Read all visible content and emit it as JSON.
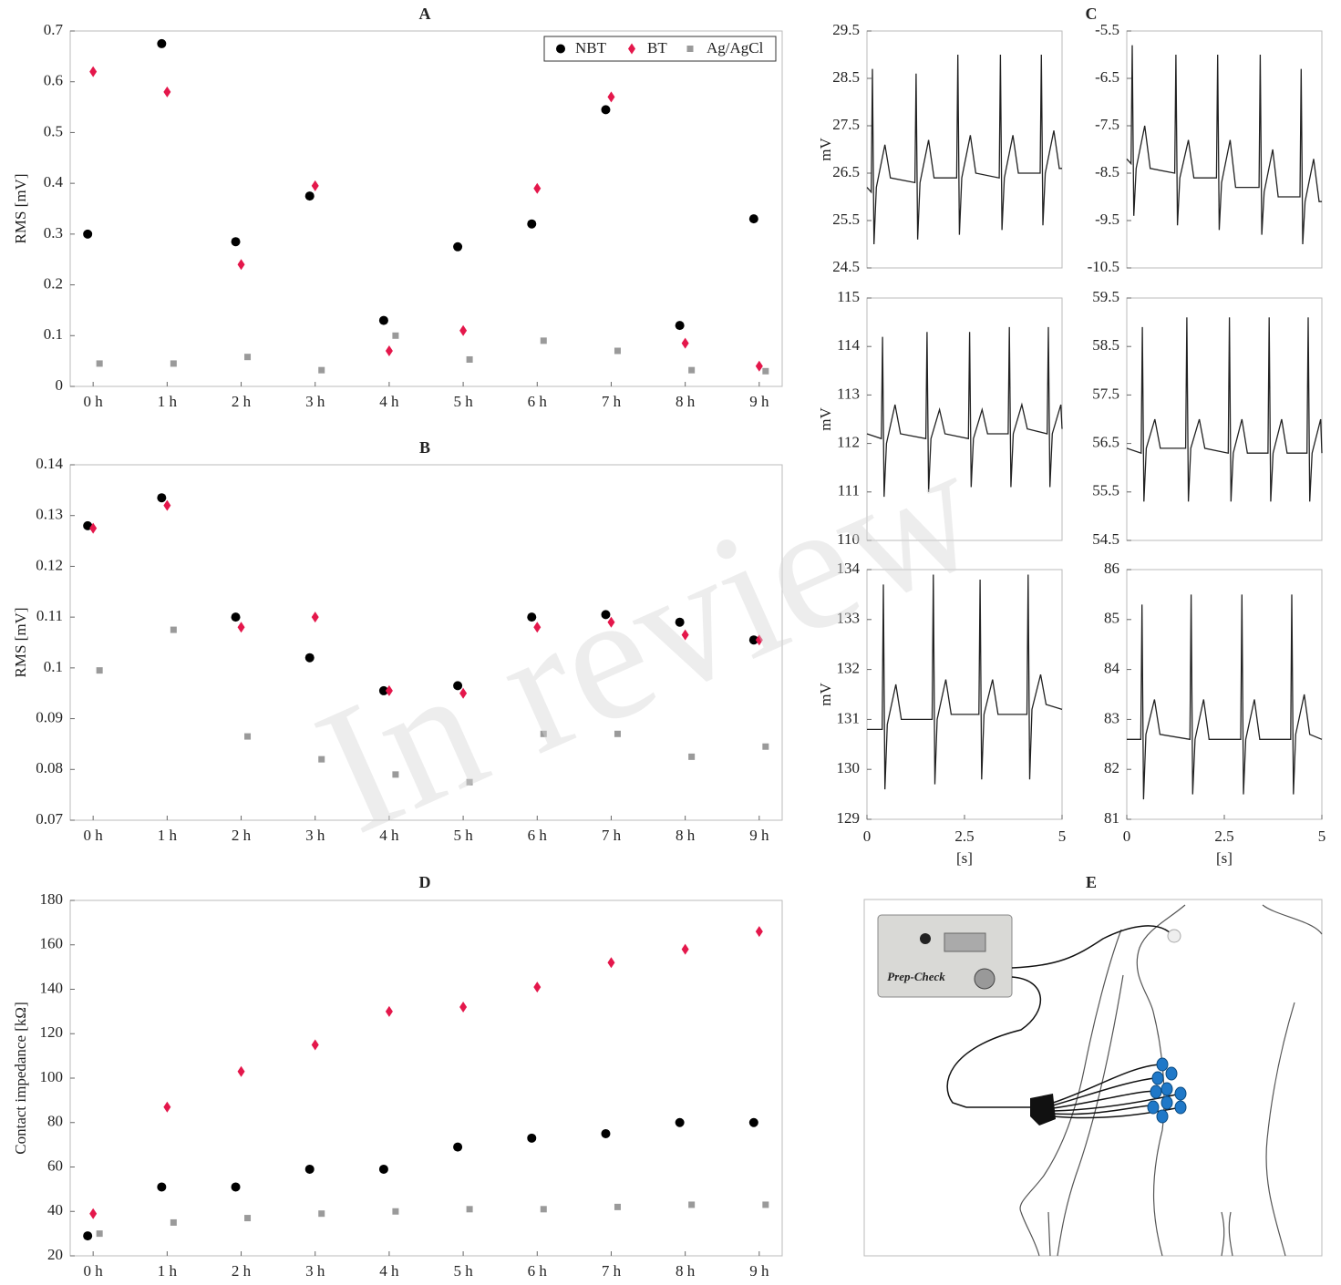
{
  "watermark": "In review",
  "illustration": {
    "title": "E",
    "device_label": "Prep-Check"
  },
  "chart_data": [
    {
      "type": "scatter",
      "title": "A",
      "ylabel": "RMS [mV]",
      "categories": [
        "0 h",
        "1 h",
        "2 h",
        "3 h",
        "4 h",
        "5 h",
        "6 h",
        "7 h",
        "8 h",
        "9 h"
      ],
      "ylim": [
        0,
        0.7
      ],
      "yticks": [
        0,
        0.1,
        0.2,
        0.3,
        0.4,
        0.5,
        0.6,
        0.7
      ],
      "legend": "upper right",
      "series": [
        {
          "name": "NBT",
          "color": "#000000",
          "marker": "circle",
          "values": [
            0.3,
            0.675,
            0.285,
            0.375,
            0.13,
            0.275,
            0.32,
            0.545,
            0.12,
            0.33
          ]
        },
        {
          "name": "BT",
          "color": "#e4174b",
          "marker": "diamond",
          "values": [
            0.62,
            0.58,
            0.24,
            0.395,
            0.07,
            0.11,
            0.39,
            0.57,
            0.085,
            0.04
          ]
        },
        {
          "name": "Ag/AgCl",
          "color": "#9a9a9a",
          "marker": "square",
          "values": [
            0.045,
            0.045,
            0.058,
            0.032,
            0.1,
            0.053,
            0.09,
            0.07,
            0.032,
            0.03
          ]
        }
      ]
    },
    {
      "type": "scatter",
      "title": "B",
      "ylabel": "RMS [mV]",
      "categories": [
        "0 h",
        "1 h",
        "2 h",
        "3 h",
        "4 h",
        "5 h",
        "6 h",
        "7 h",
        "8 h",
        "9 h"
      ],
      "ylim": [
        0.07,
        0.14
      ],
      "yticks": [
        0.07,
        0.08,
        0.09,
        0.1,
        0.11,
        0.12,
        0.13,
        0.14
      ],
      "series": [
        {
          "color": "#000000",
          "marker": "circle",
          "values": [
            0.128,
            0.1335,
            0.11,
            0.102,
            0.0955,
            0.0965,
            0.11,
            0.1105,
            0.109,
            0.1055
          ]
        },
        {
          "color": "#e4174b",
          "marker": "diamond",
          "values": [
            0.1275,
            0.132,
            0.108,
            0.11,
            0.0955,
            0.095,
            0.108,
            0.109,
            0.1065,
            0.1055
          ]
        },
        {
          "color": "#9a9a9a",
          "marker": "square",
          "values": [
            0.0995,
            0.1075,
            0.0865,
            0.082,
            0.079,
            0.0775,
            0.087,
            0.087,
            0.0825,
            0.0845
          ]
        }
      ]
    },
    {
      "type": "line",
      "ylabel": "mV",
      "color": "#222222",
      "xlim": [
        0,
        5
      ],
      "ylim": [
        24.5,
        29.5
      ],
      "yticks": [
        24.5,
        25.5,
        26.5,
        27.5,
        28.5,
        29.5
      ],
      "x": [
        0,
        0.11,
        0.14,
        0.18,
        0.24,
        0.46,
        0.6,
        1.23,
        1.26,
        1.3,
        1.36,
        1.58,
        1.72,
        2.3,
        2.33,
        2.37,
        2.43,
        2.65,
        2.79,
        3.39,
        3.42,
        3.46,
        3.52,
        3.74,
        3.88,
        4.44,
        4.47,
        4.51,
        4.57,
        4.79,
        4.93,
        5
      ],
      "values": [
        26.2,
        26.1,
        28.7,
        25.0,
        26.2,
        27.1,
        26.4,
        26.3,
        28.6,
        25.1,
        26.3,
        27.2,
        26.4,
        26.4,
        29.0,
        25.2,
        26.4,
        27.3,
        26.5,
        26.4,
        29.0,
        25.3,
        26.4,
        27.3,
        26.5,
        26.5,
        29.0,
        25.4,
        26.5,
        27.4,
        26.6,
        26.6
      ]
    },
    {
      "type": "line",
      "title": "C",
      "color": "#222222",
      "xlim": [
        0,
        5
      ],
      "ylim": [
        -10.5,
        -5.5
      ],
      "yticks": [
        -10.5,
        -9.5,
        -8.5,
        -7.5,
        -6.5,
        -5.5
      ],
      "x": [
        0,
        0.11,
        0.14,
        0.18,
        0.24,
        0.46,
        0.6,
        1.23,
        1.26,
        1.3,
        1.36,
        1.58,
        1.72,
        2.3,
        2.33,
        2.37,
        2.43,
        2.65,
        2.79,
        3.39,
        3.42,
        3.46,
        3.52,
        3.74,
        3.88,
        4.44,
        4.47,
        4.51,
        4.57,
        4.79,
        4.93,
        5
      ],
      "values": [
        -8.2,
        -8.3,
        -5.8,
        -9.4,
        -8.4,
        -7.5,
        -8.4,
        -8.5,
        -6.0,
        -9.6,
        -8.6,
        -7.8,
        -8.6,
        -8.6,
        -6.0,
        -9.7,
        -8.7,
        -7.8,
        -8.8,
        -8.8,
        -6.0,
        -9.8,
        -8.9,
        -8.0,
        -9.0,
        -9.0,
        -6.3,
        -10.0,
        -9.1,
        -8.2,
        -9.1,
        -9.1
      ]
    },
    {
      "type": "line",
      "ylabel": "mV",
      "color": "#222222",
      "xlim": [
        0,
        5
      ],
      "ylim": [
        110,
        115
      ],
      "yticks": [
        110,
        111,
        112,
        113,
        114,
        115
      ],
      "x": [
        0,
        0.37,
        0.4,
        0.44,
        0.5,
        0.72,
        0.86,
        1.51,
        1.54,
        1.58,
        1.64,
        1.86,
        2.0,
        2.6,
        2.63,
        2.67,
        2.73,
        2.95,
        3.09,
        3.62,
        3.65,
        3.69,
        3.75,
        3.97,
        4.11,
        4.62,
        4.65,
        4.69,
        4.75,
        4.97,
        5
      ],
      "values": [
        112.2,
        112.1,
        114.2,
        110.9,
        112.0,
        112.8,
        112.2,
        112.1,
        114.3,
        111.0,
        112.1,
        112.7,
        112.2,
        112.1,
        114.3,
        111.1,
        112.1,
        112.7,
        112.2,
        112.2,
        114.4,
        111.1,
        112.2,
        112.8,
        112.3,
        112.2,
        114.4,
        111.1,
        112.2,
        112.8,
        112.3
      ]
    },
    {
      "type": "line",
      "color": "#222222",
      "xlim": [
        0,
        5
      ],
      "ylim": [
        54.5,
        59.5
      ],
      "yticks": [
        54.5,
        55.5,
        56.5,
        57.5,
        58.5,
        59.5
      ],
      "x": [
        0,
        0.37,
        0.4,
        0.44,
        0.5,
        0.72,
        0.86,
        1.51,
        1.54,
        1.58,
        1.64,
        1.86,
        2.0,
        2.6,
        2.63,
        2.67,
        2.73,
        2.95,
        3.09,
        3.62,
        3.65,
        3.69,
        3.75,
        3.97,
        4.11,
        4.62,
        4.65,
        4.69,
        4.75,
        4.97,
        5
      ],
      "values": [
        56.4,
        56.3,
        58.9,
        55.3,
        56.4,
        57.0,
        56.4,
        56.4,
        59.1,
        55.3,
        56.4,
        57.0,
        56.4,
        56.3,
        59.1,
        55.3,
        56.3,
        57.0,
        56.3,
        56.3,
        59.1,
        55.3,
        56.3,
        57.0,
        56.3,
        56.3,
        59.1,
        55.3,
        56.3,
        57.0,
        56.3
      ]
    },
    {
      "type": "line",
      "ylabel": "mV",
      "xlabel": "[s]",
      "color": "#222222",
      "xlim": [
        0,
        5
      ],
      "xticks": [
        0,
        2.5,
        5
      ],
      "ylim": [
        129,
        134
      ],
      "yticks": [
        129,
        130,
        131,
        132,
        133,
        134
      ],
      "x": [
        0,
        0.39,
        0.42,
        0.46,
        0.52,
        0.74,
        0.88,
        1.67,
        1.7,
        1.74,
        1.8,
        2.02,
        2.16,
        2.87,
        2.9,
        2.94,
        3.0,
        3.22,
        3.36,
        4.1,
        4.13,
        4.17,
        4.23,
        4.45,
        4.59,
        5
      ],
      "values": [
        130.8,
        130.8,
        133.7,
        129.6,
        130.9,
        131.7,
        131.0,
        131.0,
        133.9,
        129.7,
        131.0,
        131.8,
        131.1,
        131.1,
        133.8,
        129.8,
        131.1,
        131.8,
        131.1,
        131.1,
        133.9,
        129.8,
        131.2,
        131.9,
        131.3,
        131.2
      ]
    },
    {
      "type": "line",
      "xlabel": "[s]",
      "color": "#222222",
      "xlim": [
        0,
        5
      ],
      "xticks": [
        0,
        2.5,
        5
      ],
      "ylim": [
        81,
        86
      ],
      "yticks": [
        81,
        82,
        83,
        84,
        85,
        86
      ],
      "x": [
        0,
        0.36,
        0.39,
        0.43,
        0.49,
        0.71,
        0.85,
        1.62,
        1.65,
        1.69,
        1.75,
        1.97,
        2.11,
        2.92,
        2.95,
        2.99,
        3.05,
        3.27,
        3.41,
        4.2,
        4.23,
        4.27,
        4.33,
        4.55,
        4.69,
        5
      ],
      "values": [
        82.6,
        82.6,
        85.3,
        81.4,
        82.7,
        83.4,
        82.7,
        82.6,
        85.5,
        81.5,
        82.6,
        83.4,
        82.6,
        82.6,
        85.5,
        81.5,
        82.6,
        83.4,
        82.6,
        82.6,
        85.5,
        81.5,
        82.7,
        83.5,
        82.7,
        82.6
      ]
    },
    {
      "type": "scatter",
      "title": "D",
      "ylabel": "Contact impedance [kΩ]",
      "categories": [
        "0 h",
        "1 h",
        "2 h",
        "3 h",
        "4 h",
        "5 h",
        "6 h",
        "7 h",
        "8 h",
        "9 h"
      ],
      "ylim": [
        20,
        180
      ],
      "yticks": [
        20,
        40,
        60,
        80,
        100,
        120,
        140,
        160,
        180
      ],
      "series": [
        {
          "color": "#000000",
          "marker": "circle",
          "values": [
            29,
            51,
            51,
            59,
            59,
            69,
            73,
            75,
            80,
            80
          ]
        },
        {
          "color": "#e4174b",
          "marker": "diamond",
          "values": [
            39,
            87,
            103,
            115,
            130,
            132,
            141,
            152,
            158,
            166
          ]
        },
        {
          "color": "#9a9a9a",
          "marker": "square",
          "values": [
            30,
            35,
            37,
            39,
            40,
            41,
            41,
            42,
            43,
            43
          ]
        }
      ]
    }
  ]
}
